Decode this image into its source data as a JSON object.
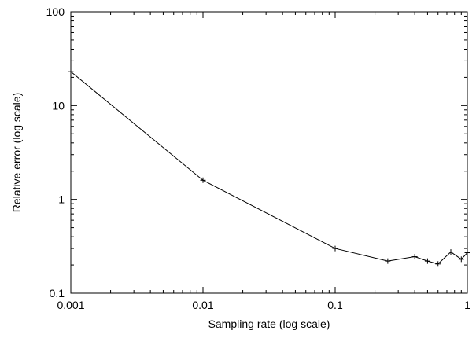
{
  "chart_data": {
    "type": "line",
    "title": "",
    "xlabel": "Sampling rate (log scale)",
    "ylabel": "Relative error (log scale)",
    "x_scale": "log",
    "y_scale": "log",
    "xlim": [
      0.001,
      1
    ],
    "ylim": [
      0.1,
      100
    ],
    "x_ticks": [
      0.001,
      0.01,
      0.1,
      1
    ],
    "x_tick_labels": [
      "0.001",
      "0.01",
      "0.1",
      "1"
    ],
    "y_ticks": [
      0.1,
      1,
      10,
      100
    ],
    "y_tick_labels": [
      "0.1",
      "1",
      "10",
      "100"
    ],
    "grid": false,
    "legend": "none",
    "series": [
      {
        "marker": "plus",
        "color": "#000000",
        "points": [
          {
            "x": 0.001,
            "y": 23
          },
          {
            "x": 0.01,
            "y": 1.6
          },
          {
            "x": 0.1,
            "y": 0.3
          },
          {
            "x": 0.25,
            "y": 0.22
          },
          {
            "x": 0.4,
            "y": 0.245
          },
          {
            "x": 0.5,
            "y": 0.22
          },
          {
            "x": 0.6,
            "y": 0.205
          },
          {
            "x": 0.75,
            "y": 0.275
          },
          {
            "x": 0.9,
            "y": 0.23
          },
          {
            "x": 1.0,
            "y": 0.27
          }
        ]
      }
    ]
  }
}
